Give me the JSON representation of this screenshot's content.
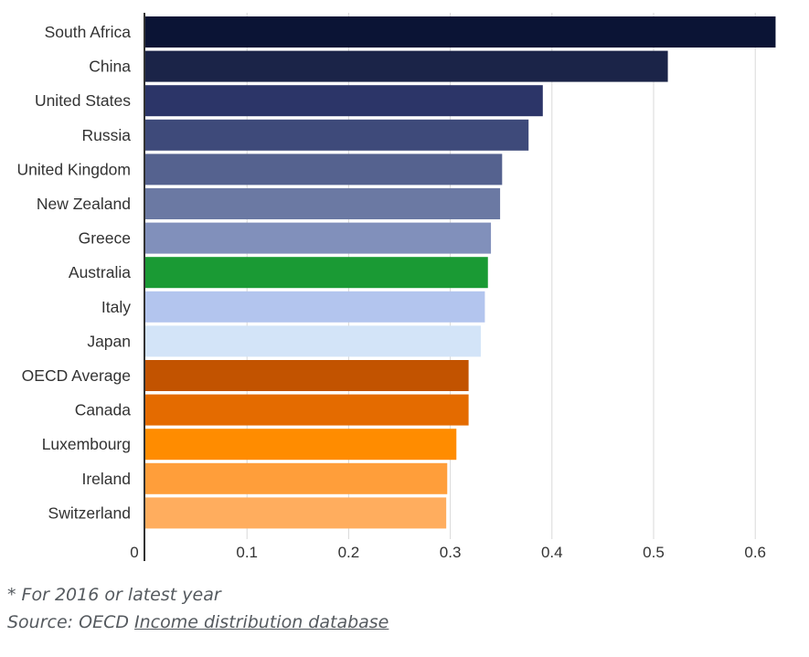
{
  "chart_data": {
    "type": "bar",
    "orientation": "horizontal",
    "categories": [
      "South Africa",
      "China",
      "United States",
      "Russia",
      "United Kingdom",
      "New Zealand",
      "Greece",
      "Australia",
      "Italy",
      "Japan",
      "OECD Average",
      "Canada",
      "Luxembourg",
      "Ireland",
      "Switzerland"
    ],
    "values": [
      0.62,
      0.514,
      0.391,
      0.377,
      0.351,
      0.349,
      0.34,
      0.337,
      0.334,
      0.33,
      0.318,
      0.318,
      0.306,
      0.297,
      0.296
    ],
    "bar_colors": [
      "#0b1435",
      "#1b2448",
      "#2c3568",
      "#3e4a7a",
      "#55628f",
      "#6b79a3",
      "#8190bb",
      "#1a9a34",
      "#b3c5ee",
      "#d3e4f8",
      "#c25300",
      "#e46b00",
      "#ff8c00",
      "#ff9e3a",
      "#ffad5e"
    ],
    "xlim": [
      0,
      0.65
    ],
    "xticks": [
      0,
      0.1,
      0.2,
      0.3,
      0.4,
      0.5,
      0.6
    ],
    "xtick_labels": [
      "0",
      "0.1",
      "0.2",
      "0.3",
      "0.4",
      "0.5",
      "0.6"
    ],
    "grid": "vertical",
    "title": "",
    "xlabel": "",
    "ylabel": ""
  },
  "footnote": "* For 2016 or latest year",
  "source": {
    "prefix": "Source: OECD ",
    "link_text": "Income distribution database"
  }
}
